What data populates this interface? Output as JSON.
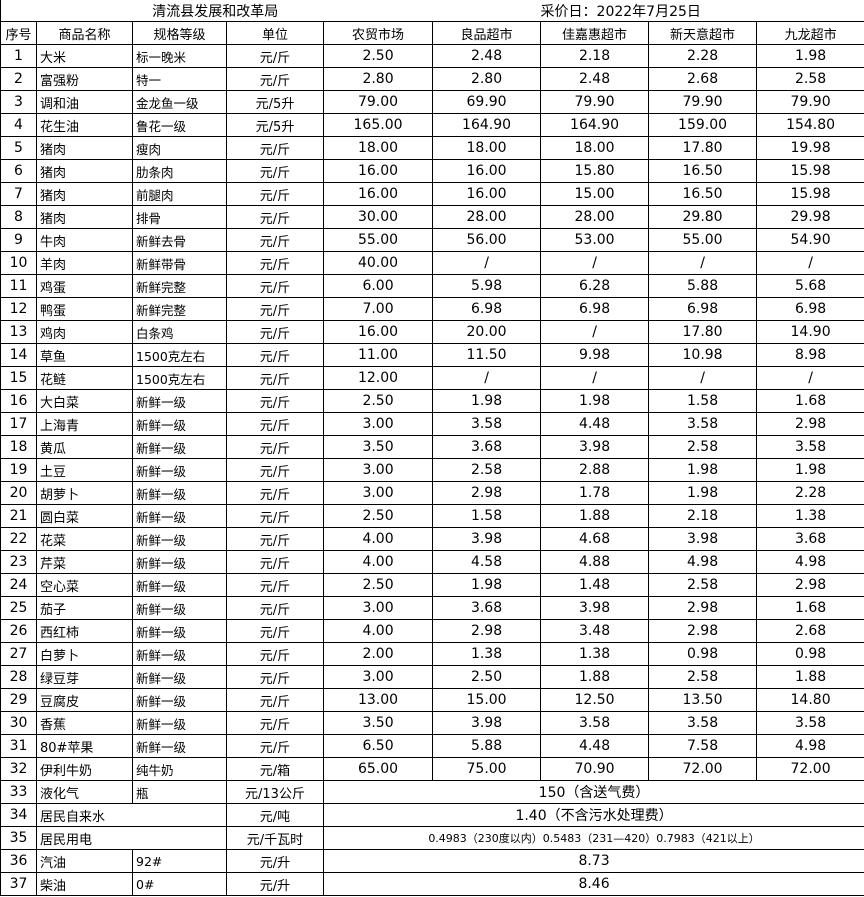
{
  "title": "清流县发展和改革局",
  "date": "采价日：2022年7月25日",
  "headers": [
    "序号",
    "商品名称",
    "规格等级",
    "单位",
    "农贸市场",
    "良品超市",
    "佳嘉惠超市",
    "新天意超市",
    "九龙超市"
  ],
  "rows": [
    {
      "no": "1",
      "name": "大米",
      "spec": "标一晚米",
      "unit": "元/斤",
      "prices": [
        "2.50",
        "2.48",
        "2.18",
        "2.28",
        "1.98"
      ]
    },
    {
      "no": "2",
      "name": "富强粉",
      "spec": "特一",
      "unit": "元/斤",
      "prices": [
        "2.80",
        "2.80",
        "2.48",
        "2.68",
        "2.58"
      ]
    },
    {
      "no": "3",
      "name": "调和油",
      "spec": "金龙鱼一级",
      "unit": "元/5升",
      "prices": [
        "79.00",
        "69.90",
        "79.90",
        "79.90",
        "79.90"
      ]
    },
    {
      "no": "4",
      "name": "花生油",
      "spec": "鲁花一级",
      "unit": "元/5升",
      "prices": [
        "165.00",
        "164.90",
        "164.90",
        "159.00",
        "154.80"
      ]
    },
    {
      "no": "5",
      "name": "猪肉",
      "spec": "瘦肉",
      "unit": "元/斤",
      "prices": [
        "18.00",
        "18.00",
        "18.00",
        "17.80",
        "19.98"
      ]
    },
    {
      "no": "6",
      "name": "猪肉",
      "spec": "肋条肉",
      "unit": "元/斤",
      "prices": [
        "16.00",
        "16.00",
        "15.80",
        "16.50",
        "15.98"
      ]
    },
    {
      "no": "7",
      "name": "猪肉",
      "spec": "前腿肉",
      "unit": "元/斤",
      "prices": [
        "16.00",
        "16.00",
        "15.00",
        "16.50",
        "15.98"
      ]
    },
    {
      "no": "8",
      "name": "猪肉",
      "spec": "排骨",
      "unit": "元/斤",
      "prices": [
        "30.00",
        "28.00",
        "28.00",
        "29.80",
        "29.98"
      ]
    },
    {
      "no": "9",
      "name": "牛肉",
      "spec": "新鲜去骨",
      "unit": "元/斤",
      "prices": [
        "55.00",
        "56.00",
        "53.00",
        "55.00",
        "54.90"
      ]
    },
    {
      "no": "10",
      "name": "羊肉",
      "spec": "新鲜带骨",
      "unit": "元/斤",
      "prices": [
        "40.00",
        "/",
        "/",
        "/",
        "/"
      ]
    },
    {
      "no": "11",
      "name": "鸡蛋",
      "spec": "新鲜完整",
      "unit": "元/斤",
      "prices": [
        "6.00",
        "5.98",
        "6.28",
        "5.88",
        "5.68"
      ]
    },
    {
      "no": "12",
      "name": "鸭蛋",
      "spec": "新鲜完整",
      "unit": "元/斤",
      "prices": [
        "7.00",
        "6.98",
        "6.98",
        "6.98",
        "6.98"
      ]
    },
    {
      "no": "13",
      "name": "鸡肉",
      "spec": "白条鸡",
      "unit": "元/斤",
      "prices": [
        "16.00",
        "20.00",
        "/",
        "17.80",
        "14.90"
      ]
    },
    {
      "no": "14",
      "name": "草鱼",
      "spec": "1500克左右",
      "unit": "元/斤",
      "prices": [
        "11.00",
        "11.50",
        "9.98",
        "10.98",
        "8.98"
      ]
    },
    {
      "no": "15",
      "name": "花鲢",
      "spec": "1500克左右",
      "unit": "元/斤",
      "prices": [
        "12.00",
        "/",
        "/",
        "/",
        "/"
      ]
    },
    {
      "no": "16",
      "name": "大白菜",
      "spec": "新鲜一级",
      "unit": "元/斤",
      "prices": [
        "2.50",
        "1.98",
        "1.98",
        "1.58",
        "1.68"
      ]
    },
    {
      "no": "17",
      "name": "上海青",
      "spec": "新鲜一级",
      "unit": "元/斤",
      "prices": [
        "3.00",
        "3.58",
        "4.48",
        "3.58",
        "2.98"
      ]
    },
    {
      "no": "18",
      "name": "黄瓜",
      "spec": "新鲜一级",
      "unit": "元/斤",
      "prices": [
        "3.50",
        "3.68",
        "3.98",
        "2.58",
        "3.58"
      ]
    },
    {
      "no": "19",
      "name": "土豆",
      "spec": "新鲜一级",
      "unit": "元/斤",
      "prices": [
        "3.00",
        "2.58",
        "2.88",
        "1.98",
        "1.98"
      ]
    },
    {
      "no": "20",
      "name": "胡萝卜",
      "spec": "新鲜一级",
      "unit": "元/斤",
      "prices": [
        "3.00",
        "2.98",
        "1.78",
        "1.98",
        "2.28"
      ]
    },
    {
      "no": "21",
      "name": "圆白菜",
      "spec": "新鲜一级",
      "unit": "元/斤",
      "prices": [
        "2.50",
        "1.58",
        "1.88",
        "2.18",
        "1.38"
      ]
    },
    {
      "no": "22",
      "name": "花菜",
      "spec": "新鲜一级",
      "unit": "元/斤",
      "prices": [
        "4.00",
        "3.98",
        "4.68",
        "3.98",
        "3.68"
      ]
    },
    {
      "no": "23",
      "name": "芹菜",
      "spec": "新鲜一级",
      "unit": "元/斤",
      "prices": [
        "4.00",
        "4.58",
        "4.88",
        "4.98",
        "4.98"
      ]
    },
    {
      "no": "24",
      "name": "空心菜",
      "spec": "新鲜一级",
      "unit": "元/斤",
      "prices": [
        "2.50",
        "1.98",
        "1.48",
        "2.58",
        "2.98"
      ]
    },
    {
      "no": "25",
      "name": "茄子",
      "spec": "新鲜一级",
      "unit": "元/斤",
      "prices": [
        "3.00",
        "3.68",
        "3.98",
        "2.98",
        "1.68"
      ]
    },
    {
      "no": "26",
      "name": "西红柿",
      "spec": "新鲜一级",
      "unit": "元/斤",
      "prices": [
        "4.00",
        "2.98",
        "3.48",
        "2.98",
        "2.68"
      ]
    },
    {
      "no": "27",
      "name": "白萝卜",
      "spec": "新鲜一级",
      "unit": "元/斤",
      "prices": [
        "2.00",
        "1.38",
        "1.38",
        "0.98",
        "0.98"
      ]
    },
    {
      "no": "28",
      "name": "绿豆芽",
      "spec": "新鲜一级",
      "unit": "元/斤",
      "prices": [
        "3.00",
        "2.50",
        "1.88",
        "2.58",
        "1.88"
      ]
    },
    {
      "no": "29",
      "name": "豆腐皮",
      "spec": "新鲜一级",
      "unit": "元/斤",
      "prices": [
        "13.00",
        "15.00",
        "12.50",
        "13.50",
        "14.80"
      ]
    },
    {
      "no": "30",
      "name": "香蕉",
      "spec": "新鲜一级",
      "unit": "元/斤",
      "prices": [
        "3.50",
        "3.98",
        "3.58",
        "3.58",
        "3.58"
      ]
    },
    {
      "no": "31",
      "name": "80#苹果",
      "spec": "新鲜一级",
      "unit": "元/斤",
      "prices": [
        "6.50",
        "5.88",
        "4.48",
        "7.58",
        "4.98"
      ]
    },
    {
      "no": "32",
      "name": "伊利牛奶",
      "spec": "纯牛奶",
      "unit": "元/箱",
      "prices": [
        "65.00",
        "75.00",
        "70.90",
        "72.00",
        "72.00"
      ]
    },
    {
      "no": "33",
      "name": "液化气",
      "spec": "瓶",
      "unit": "元/13公斤",
      "merged": "150（含送气费）"
    },
    {
      "no": "34",
      "name": "居民自来水",
      "unit": "元/吨",
      "merged": "1.40（不含污水处理费）"
    },
    {
      "no": "35",
      "name": "居民用电",
      "unit": "元/千瓦时",
      "merged": "0.4983（230度以内）0.5483（231—420）0.7983（421以上）"
    },
    {
      "no": "36",
      "name": "汽油",
      "spec": "92#",
      "unit": "元/升",
      "merged": "8.73"
    },
    {
      "no": "37",
      "name": "柴油",
      "spec": "0#",
      "unit": "元/升",
      "merged": "8.46"
    }
  ]
}
